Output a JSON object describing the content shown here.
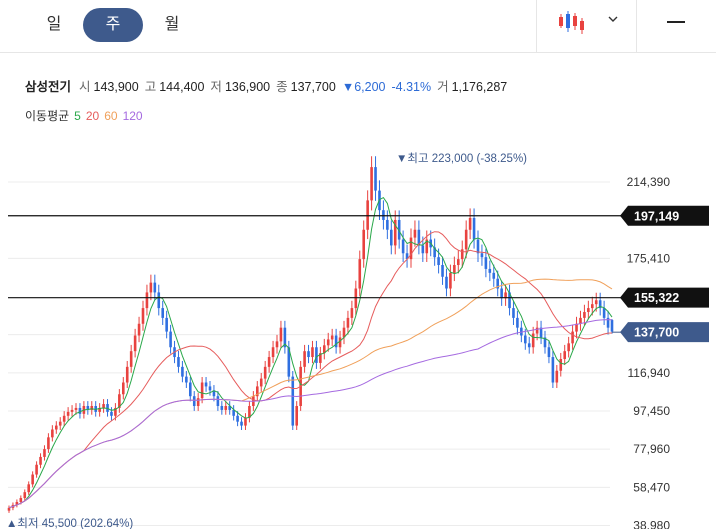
{
  "tabs": [
    {
      "label": "일",
      "active": false
    },
    {
      "label": "주",
      "active": true
    },
    {
      "label": "월",
      "active": false
    }
  ],
  "stock": {
    "name": "삼성전기",
    "open_label": "시",
    "open": "143,900",
    "high_label": "고",
    "high": "144,400",
    "low_label": "저",
    "low": "136,900",
    "close_label": "종",
    "close": "137,700",
    "change": "▼6,200",
    "change_pct": "-4.31%",
    "volume_label": "거",
    "volume": "1,176,287"
  },
  "ma": {
    "label": "이동평균",
    "periods": [
      {
        "value": "5",
        "color": "#2aa84a"
      },
      {
        "value": "20",
        "color": "#e65c5c"
      },
      {
        "value": "60",
        "color": "#f0a05a"
      },
      {
        "value": "120",
        "color": "#a56ae0"
      }
    ]
  },
  "colors": {
    "up": "#e8423f",
    "down": "#2f6fe0",
    "accent": "#3e5a8c",
    "line_badge": "#111111"
  },
  "chart_data": {
    "type": "candlestick",
    "interval": "weekly",
    "y_axis_ticks": [
      214390,
      175410,
      136420,
      116940,
      97450,
      77960,
      58470,
      38980
    ],
    "y_axis_labels": [
      "214,390",
      "175,410",
      "116,940",
      "97,450",
      "77,960",
      "58,470",
      "38,980"
    ],
    "ylim": [
      38980,
      233000
    ],
    "max": {
      "label": "▼최고 223,000 (-38.25%)",
      "value": 223000
    },
    "min": {
      "label": "▲최저 45,500 (202.64%)",
      "value": 45500
    },
    "horizontal_lines": [
      {
        "value": 197149,
        "label": "197,149"
      },
      {
        "value": 155322,
        "label": "155,322"
      }
    ],
    "current": {
      "value": 137700,
      "label": "137,700"
    },
    "closes": [
      48000,
      49500,
      51000,
      53000,
      56000,
      60000,
      65000,
      70000,
      74000,
      78000,
      84000,
      88000,
      90000,
      92000,
      95000,
      97000,
      98000,
      99000,
      96000,
      100000,
      98000,
      100000,
      97000,
      99000,
      101000,
      97000,
      95000,
      99000,
      106000,
      112000,
      120000,
      128000,
      136000,
      142000,
      150000,
      158000,
      163000,
      158000,
      150000,
      145000,
      138000,
      130000,
      125000,
      120000,
      115000,
      112000,
      105000,
      100000,
      104000,
      112000,
      110000,
      108000,
      105000,
      100000,
      98000,
      100000,
      98000,
      95000,
      92000,
      90000,
      94000,
      100000,
      105000,
      110000,
      114000,
      120000,
      125000,
      130000,
      133000,
      140000,
      130000,
      115000,
      90000,
      100000,
      120000,
      128000,
      125000,
      130000,
      122000,
      127000,
      131000,
      134000,
      136000,
      130000,
      135000,
      140000,
      145000,
      150000,
      160000,
      175000,
      190000,
      205000,
      222000,
      210000,
      200000,
      195000,
      190000,
      182000,
      195000,
      185000,
      178000,
      175000,
      186000,
      190000,
      182000,
      178000,
      185000,
      181000,
      176000,
      172000,
      166000,
      160000,
      168000,
      172000,
      175000,
      180000,
      190000,
      196000,
      185000,
      178000,
      176000,
      170000,
      168000,
      165000,
      160000,
      155000,
      158000,
      150000,
      145000,
      140000,
      136000,
      132000,
      130000,
      137000,
      140000,
      135000,
      130000,
      125000,
      112000,
      118000,
      124000,
      128000,
      132000,
      138000,
      142000,
      145000,
      148000,
      150000,
      152000,
      154000,
      150000,
      145000,
      140000,
      138000
    ]
  }
}
